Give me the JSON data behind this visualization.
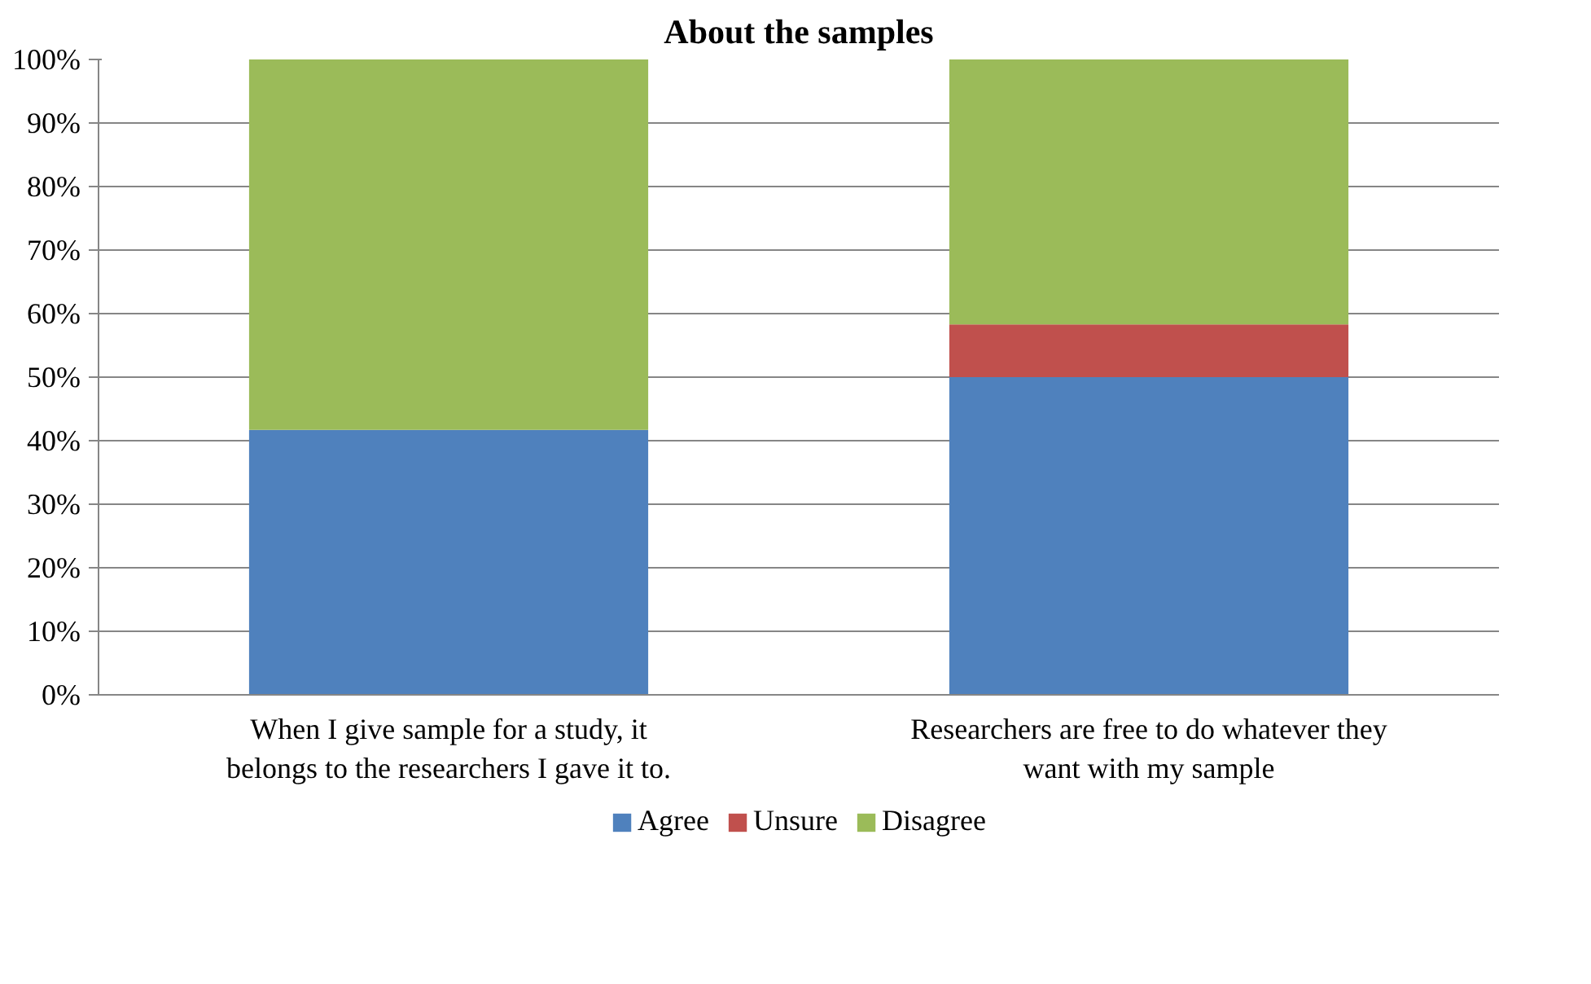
{
  "chart_data": {
    "type": "bar",
    "title": "About the samples",
    "stacked": true,
    "categories": [
      "When I give sample for a study, it belongs to the researchers I gave it to.",
      "Researchers are free to do whatever they want with my sample"
    ],
    "series": [
      {
        "name": "Agree",
        "color": "#4f81bd",
        "values": [
          41.7,
          50
        ]
      },
      {
        "name": "Unsure",
        "color": "#c0504d",
        "values": [
          0,
          8.3
        ]
      },
      {
        "name": "Disagree",
        "color": "#9bbb59",
        "values": [
          58.3,
          41.7
        ]
      }
    ],
    "ylim": [
      0,
      100
    ],
    "yticks": [
      {
        "value": 0,
        "label": "0%"
      },
      {
        "value": 10,
        "label": "10%"
      },
      {
        "value": 20,
        "label": "20%"
      },
      {
        "value": 30,
        "label": "30%"
      },
      {
        "value": 40,
        "label": "40%"
      },
      {
        "value": 50,
        "label": "50%"
      },
      {
        "value": 60,
        "label": "60%"
      },
      {
        "value": 70,
        "label": "70%"
      },
      {
        "value": 80,
        "label": "80%"
      },
      {
        "value": 90,
        "label": "90%"
      },
      {
        "value": 100,
        "label": "100%"
      }
    ],
    "grid": "y",
    "legend": "bottom"
  }
}
